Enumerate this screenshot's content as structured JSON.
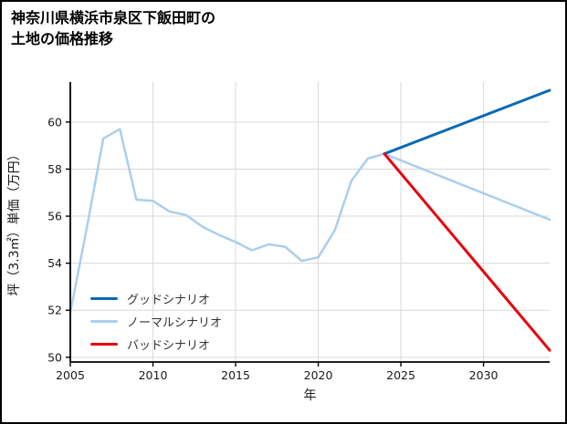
{
  "title": {
    "line1": "神奈川県横浜市泉区下飯田町の",
    "line2": "土地の価格推移"
  },
  "chart_data": {
    "type": "line",
    "title": "神奈川県横浜市泉区下飯田町の土地の価格推移",
    "xlabel": "年",
    "ylabel": "坪（3.3㎡）単価（万円）",
    "xlim": [
      2005,
      2034
    ],
    "ylim": [
      49.8,
      61.7
    ],
    "x_ticks": [
      2005,
      2010,
      2015,
      2020,
      2025,
      2030
    ],
    "y_ticks": [
      50,
      52,
      54,
      56,
      58,
      60
    ],
    "grid": true,
    "grid_color": "#d9d9d9",
    "axis_color": "#000000",
    "tick_label_color": "#1a1a1a",
    "legend_position": "lower-left",
    "series": [
      {
        "id": "good",
        "name": "グッドシナリオ",
        "color": "#0a6ab4",
        "line_width": 3,
        "z": 2,
        "x": [
          2024,
          2034
        ],
        "y": [
          58.65,
          61.35
        ]
      },
      {
        "id": "normal",
        "name": "ノーマルシナリオ",
        "color": "#a9cfee",
        "line_width": 2.5,
        "z": 1,
        "x": [
          2005,
          2006,
          2007,
          2008,
          2009,
          2010,
          2011,
          2012,
          2013,
          2014,
          2015,
          2016,
          2017,
          2018,
          2019,
          2020,
          2021,
          2022,
          2023,
          2024,
          2034
        ],
        "y": [
          51.9,
          55.5,
          59.3,
          59.7,
          56.7,
          56.65,
          56.2,
          56.05,
          55.55,
          55.2,
          54.9,
          54.55,
          54.8,
          54.7,
          54.1,
          54.25,
          55.4,
          57.5,
          58.45,
          58.65,
          55.85
        ]
      },
      {
        "id": "bad",
        "name": "バッドシナリオ",
        "color": "#e8000d",
        "line_width": 3,
        "z": 3,
        "x": [
          2024,
          2034
        ],
        "y": [
          58.65,
          50.3
        ]
      }
    ]
  }
}
